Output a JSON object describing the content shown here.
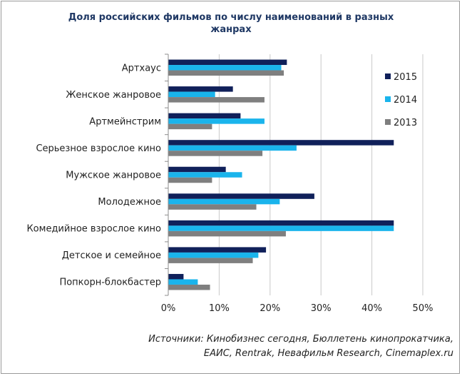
{
  "chart_data": {
    "type": "bar",
    "orientation": "horizontal",
    "title_lines": [
      "Доля российских фильмов по числу наименований в разных",
      "жанрах"
    ],
    "categories": [
      "Артхаус",
      "Женское жанровое",
      "Артмейнстрим",
      "Серьезное взрослое кино",
      "Мужское жанровое",
      "Молодежное",
      "Комедийное взрослое кино",
      "Детское и семейное",
      "Попкорн-блокбастер"
    ],
    "series": [
      {
        "name": "2015",
        "color": "#10205a",
        "values": [
          23.3,
          12.7,
          14.2,
          44.3,
          11.3,
          28.7,
          44.3,
          19.2,
          3.0
        ]
      },
      {
        "name": "2014",
        "color": "#1ab4ec",
        "values": [
          22.2,
          9.2,
          18.9,
          25.2,
          14.5,
          21.9,
          44.3,
          17.7,
          5.8
        ]
      },
      {
        "name": "2013",
        "color": "#7f7f7f",
        "values": [
          22.7,
          18.9,
          8.6,
          18.5,
          8.6,
          17.3,
          23.1,
          16.6,
          8.2
        ]
      }
    ],
    "xlim": [
      0,
      50
    ],
    "xticks": [
      0,
      10,
      20,
      30,
      40,
      50
    ],
    "xtick_labels": [
      "0%",
      "10%",
      "20%",
      "30%",
      "40%",
      "50%"
    ],
    "grid": true,
    "legend_position": "top-right",
    "source_lines": [
      "Источники: Кинобизнес сегодня, Бюллетень кинопрокатчика,",
      "ЕАИС, Rentrak, Невафильм Research, Cinemaplex.ru"
    ]
  }
}
